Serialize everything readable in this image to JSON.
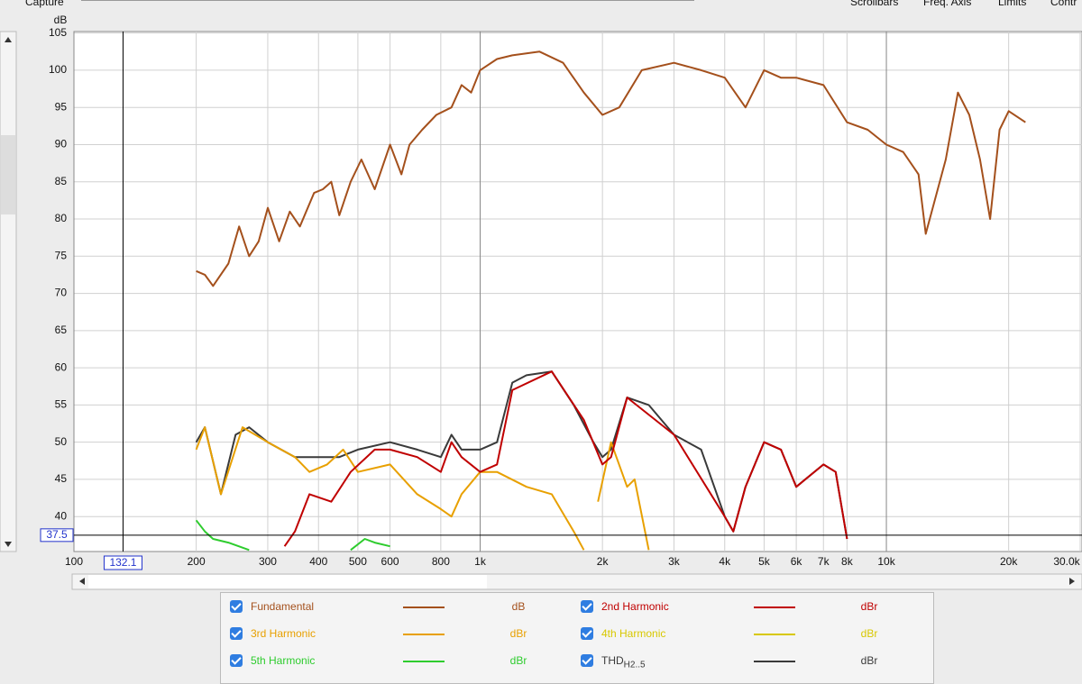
{
  "toolbar": {
    "left": "Capture",
    "items": [
      "Scrollbars",
      "Freq. Axis",
      "Limits",
      "Contr"
    ]
  },
  "chart_data": {
    "type": "line",
    "y_label": "dB",
    "xscale": "log",
    "grid": true,
    "xlim": [
      100,
      30000
    ],
    "ylim": [
      35.3,
      105.2
    ],
    "xticks": [
      100,
      200,
      300,
      400,
      500,
      600,
      800,
      {
        "value": 1000,
        "label": "1k"
      },
      {
        "value": 2000,
        "label": "2k"
      },
      {
        "value": 3000,
        "label": "3k"
      },
      {
        "value": 4000,
        "label": "4k"
      },
      {
        "value": 5000,
        "label": "5k"
      },
      {
        "value": 6000,
        "label": "6k"
      },
      {
        "value": 7000,
        "label": "7k"
      },
      {
        "value": 8000,
        "label": "8k"
      },
      {
        "value": 10000,
        "label": "10k"
      },
      {
        "value": 20000,
        "label": "20k"
      },
      {
        "value": 30000,
        "label": "30.0k"
      }
    ],
    "yticks": [
      40,
      45,
      50,
      55,
      60,
      65,
      70,
      75,
      80,
      85,
      90,
      95,
      100,
      105
    ],
    "cursor": {
      "x": 132.1,
      "y": 37.5
    },
    "series": [
      {
        "name": "Fundamental",
        "unit": "dB",
        "color": "#a4501c",
        "x": [
          200,
          210,
          220,
          240,
          255,
          270,
          285,
          300,
          320,
          340,
          360,
          390,
          410,
          430,
          450,
          480,
          510,
          550,
          600,
          640,
          670,
          720,
          780,
          850,
          900,
          950,
          1000,
          1100,
          1200,
          1400,
          1600,
          1800,
          2000,
          2200,
          2500,
          3000,
          3500,
          4000,
          4500,
          5000,
          5500,
          6000,
          7000,
          8000,
          9000,
          10000,
          11000,
          12000,
          12500,
          14000,
          15000,
          16000,
          17000,
          18000,
          19000,
          20000,
          22000
        ],
        "values": [
          73,
          72.5,
          71,
          74,
          79,
          75,
          77,
          81.5,
          77,
          81,
          79,
          83.5,
          84,
          85,
          80.5,
          85,
          88,
          84,
          90,
          86,
          90,
          92,
          94,
          95,
          98,
          97,
          100,
          101.5,
          102,
          102.5,
          101,
          97,
          94,
          95,
          100,
          101,
          100,
          99,
          95,
          100,
          99,
          99,
          98,
          93,
          92,
          90,
          89,
          86,
          78,
          88,
          97,
          94,
          88,
          80,
          92,
          94.5,
          93
        ]
      },
      {
        "name": "2nd Harmonic",
        "unit": "dBr",
        "color": "#c00000",
        "x": [
          330,
          350,
          380,
          430,
          480,
          550,
          600,
          700,
          800,
          850,
          900,
          1000,
          1100,
          1200,
          1500,
          1800,
          2000,
          2100,
          2300,
          3000,
          4000,
          4200,
          4500,
          5000,
          5500,
          6000,
          7000,
          7500,
          8000
        ],
        "values": [
          36,
          38,
          43,
          42,
          46,
          49,
          49,
          48,
          46,
          50,
          48,
          46,
          47,
          57,
          59.5,
          53,
          47,
          48,
          56,
          51,
          40,
          38,
          44,
          50,
          49,
          44,
          47,
          46,
          37
        ]
      },
      {
        "name": "3rd Harmonic",
        "unit": "dBr",
        "color": "#e8a000",
        "x": [
          200,
          210,
          230,
          260,
          300,
          350,
          380,
          420,
          460,
          500,
          600,
          700,
          800,
          850,
          900,
          1000,
          1100,
          1300,
          1500,
          1700,
          1800,
          null,
          1950,
          2100,
          2300,
          2400,
          2600
        ],
        "values": [
          49,
          52,
          43,
          52,
          50,
          48,
          46,
          47,
          49,
          46,
          47,
          43,
          41,
          40,
          43,
          46,
          46,
          44,
          43,
          38,
          35.5,
          null,
          42,
          50,
          44,
          45,
          35.5
        ]
      },
      {
        "name": "4th Harmonic",
        "unit": "dBr",
        "color": "#d8c800",
        "x": [],
        "values": []
      },
      {
        "name": "5th Harmonic",
        "unit": "dBr",
        "color": "#2ecc2e",
        "x": [
          200,
          210,
          220,
          240,
          270,
          null,
          480,
          520,
          550,
          600
        ],
        "values": [
          39.5,
          38,
          37,
          36.5,
          35.5,
          null,
          35.5,
          37,
          36.5,
          36
        ]
      },
      {
        "name": "THD",
        "subscript": "H2..5",
        "unit": "dBr",
        "color": "#3a3a3a",
        "x": [
          200,
          210,
          230,
          250,
          270,
          300,
          350,
          400,
          450,
          500,
          600,
          700,
          800,
          850,
          900,
          1000,
          1100,
          1200,
          1300,
          1500,
          1700,
          1900,
          2000,
          2100,
          2300,
          2600,
          3000,
          3500,
          4000,
          4200,
          4500,
          5000,
          5500,
          6000,
          7000,
          7500,
          8000
        ],
        "values": [
          50,
          52,
          43,
          51,
          52,
          50,
          48,
          48,
          48,
          49,
          50,
          49,
          48,
          51,
          49,
          49,
          50,
          58,
          59,
          59.5,
          55,
          50,
          48,
          49,
          56,
          55,
          51,
          49,
          40,
          38,
          44,
          50,
          49,
          44,
          47,
          46,
          37
        ]
      }
    ]
  }
}
